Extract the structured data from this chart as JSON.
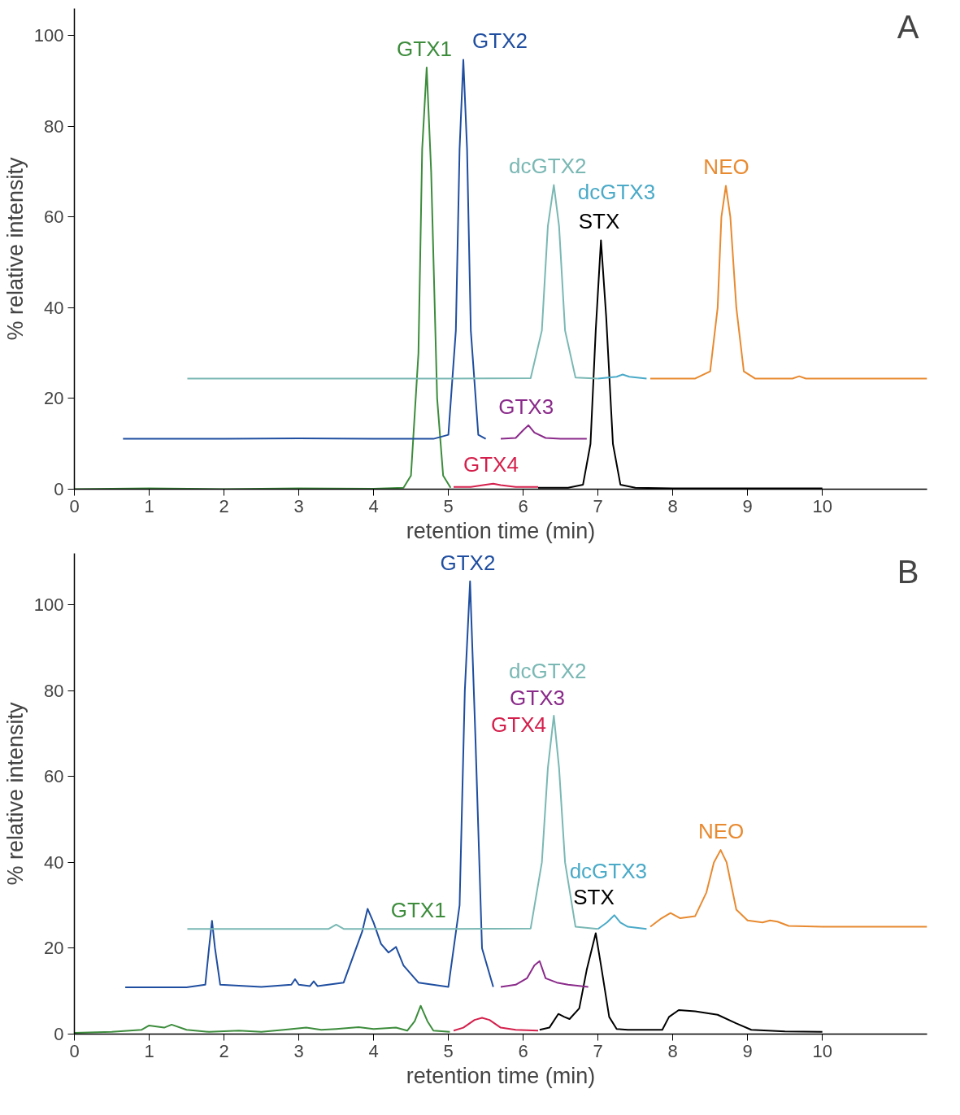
{
  "chart_data": [
    {
      "type": "line",
      "xlabel": "retention time (min)",
      "ylabel": "% relative intensity",
      "annotations": [
        "A"
      ],
      "xlim": [
        0,
        11.4
      ],
      "ylim": [
        0,
        106
      ],
      "xticks": [
        0,
        1,
        2,
        3,
        4,
        5,
        6,
        7,
        8,
        9,
        10
      ],
      "yticks": [
        0,
        20,
        40,
        60,
        80,
        100
      ],
      "grid": false,
      "legend": false,
      "marker": "none",
      "line_style": "solid",
      "series": [
        {
          "name": "GTX1",
          "color": "#3c8c3c",
          "x": [
            0,
            1,
            2,
            3,
            4,
            4.4,
            4.5,
            4.6,
            4.65,
            4.71,
            4.77,
            4.85,
            4.93,
            5.03
          ],
          "values": [
            0,
            0.2,
            0,
            0.2,
            0.1,
            0.3,
            3,
            30,
            75,
            93,
            70,
            20,
            3,
            0.3
          ]
        },
        {
          "name": "GTX4",
          "color": "#d4204c",
          "x": [
            5.07,
            5.3,
            5.5,
            5.6,
            5.7,
            5.9,
            6.2
          ],
          "values": [
            0.5,
            0.5,
            1,
            1.2,
            0.9,
            0.5,
            0.5
          ]
        },
        {
          "name": "STX",
          "color": "#000000",
          "x": [
            6.2,
            6.6,
            6.8,
            6.9,
            6.97,
            7.04,
            7.11,
            7.2,
            7.3,
            7.5,
            8,
            9,
            10
          ],
          "values": [
            0.3,
            0.3,
            1,
            10,
            35,
            54.9,
            38,
            10,
            1,
            0.3,
            0.2,
            0.2,
            0.2
          ]
        },
        {
          "name": "GTX2",
          "color": "#1f4ea0",
          "x": [
            0.65,
            2,
            3,
            4,
            4.8,
            5.0,
            5.1,
            5.15,
            5.2,
            5.25,
            5.3,
            5.4,
            5.5
          ],
          "values": [
            11.1,
            11.1,
            11.2,
            11.1,
            11.1,
            12,
            35,
            75,
            94.7,
            75,
            35,
            12,
            11.1
          ]
        },
        {
          "name": "GTX3",
          "color": "#8a2a8a",
          "x": [
            5.7,
            5.9,
            6.0,
            6.07,
            6.15,
            6.3,
            6.5,
            6.85
          ],
          "values": [
            11.1,
            11.3,
            13,
            14.1,
            12.5,
            11.3,
            11.1,
            11.1
          ]
        },
        {
          "name": "dcGTX2",
          "color": "#7ab8b4",
          "x": [
            1.51,
            3,
            5,
            6.1,
            6.25,
            6.33,
            6.41,
            6.48,
            6.56,
            6.7,
            7.0
          ],
          "values": [
            24.4,
            24.4,
            24.4,
            24.5,
            35,
            58,
            67.1,
            58,
            35,
            24.6,
            24.4
          ]
        },
        {
          "name": "dcGTX3",
          "color": "#4aaac8",
          "x": [
            7.0,
            7.25,
            7.33,
            7.42,
            7.65
          ],
          "values": [
            24.4,
            24.8,
            25.3,
            24.8,
            24.4
          ]
        },
        {
          "name": "NEO",
          "color": "#e88a30",
          "x": [
            7.7,
            8.3,
            8.5,
            8.6,
            8.65,
            8.71,
            8.77,
            8.85,
            8.95,
            9.1,
            9.6,
            9.69,
            9.78,
            10,
            11.4
          ],
          "values": [
            24.4,
            24.4,
            26,
            40,
            60,
            66.9,
            60,
            40,
            26,
            24.4,
            24.4,
            24.9,
            24.4,
            24.4,
            24.4
          ]
        }
      ]
    },
    {
      "type": "line",
      "xlabel": "retention time (min)",
      "ylabel": "% relative intensity",
      "annotations": [
        "B"
      ],
      "xlim": [
        0,
        11.4
      ],
      "ylim": [
        0,
        112
      ],
      "xticks": [
        0,
        1,
        2,
        3,
        4,
        5,
        6,
        7,
        8,
        9,
        10
      ],
      "yticks": [
        0,
        20,
        40,
        60,
        80,
        100
      ],
      "grid": false,
      "legend": false,
      "marker": "none",
      "line_style": "solid",
      "series": [
        {
          "name": "GTX1",
          "color": "#3c8c3c",
          "x": [
            0,
            0.5,
            0.9,
            1.0,
            1.2,
            1.3,
            1.5,
            1.8,
            2.2,
            2.5,
            2.8,
            3.1,
            3.3,
            3.5,
            3.8,
            4.0,
            4.3,
            4.45,
            4.55,
            4.63,
            4.72,
            4.8,
            5.02
          ],
          "values": [
            0.3,
            0.5,
            1,
            2,
            1.5,
            2.2,
            1,
            0.5,
            0.8,
            0.5,
            1,
            1.5,
            1,
            1.2,
            1.6,
            1.2,
            1.5,
            0.8,
            3,
            6.6,
            3,
            0.8,
            0.5
          ]
        },
        {
          "name": "GTX4",
          "color": "#d4204c",
          "x": [
            5.07,
            5.2,
            5.35,
            5.45,
            5.55,
            5.7,
            5.9,
            6.2
          ],
          "values": [
            0.8,
            1.5,
            3.3,
            3.8,
            3.3,
            1.5,
            1,
            0.8
          ]
        },
        {
          "name": "STX",
          "color": "#000000",
          "x": [
            6.22,
            6.35,
            6.47,
            6.55,
            6.62,
            6.75,
            6.85,
            6.97,
            7.05,
            7.15,
            7.25,
            7.4,
            7.86,
            7.95,
            8.08,
            8.3,
            8.6,
            8.85,
            9.05,
            9.5,
            10
          ],
          "values": [
            1,
            1.5,
            4.7,
            4,
            3.5,
            6,
            15,
            23.5,
            15,
            4,
            1.2,
            1,
            1,
            4,
            5.6,
            5.3,
            4.5,
            2.5,
            1,
            0.6,
            0.5
          ]
        },
        {
          "name": "GTX2",
          "color": "#1f4ea0",
          "x": [
            0.68,
            1.5,
            1.75,
            1.8,
            1.84,
            1.88,
            1.95,
            2.5,
            2.9,
            2.95,
            3.0,
            3.15,
            3.2,
            3.25,
            3.6,
            3.85,
            3.92,
            4.0,
            4.1,
            4.2,
            4.3,
            4.4,
            4.6,
            5.0,
            5.15,
            5.22,
            5.29,
            5.36,
            5.45,
            5.6
          ],
          "values": [
            10.9,
            10.9,
            11.5,
            20,
            26.4,
            20,
            11.5,
            11,
            11.5,
            12.8,
            11.5,
            11.2,
            12.3,
            11.2,
            12,
            24,
            29.2,
            26,
            21,
            19,
            20.3,
            16,
            12,
            11,
            30,
            80,
            105.5,
            70,
            20,
            11
          ]
        },
        {
          "name": "GTX3",
          "color": "#8a2a8a",
          "x": [
            5.7,
            5.9,
            6.05,
            6.15,
            6.22,
            6.3,
            6.45,
            6.6,
            6.87
          ],
          "values": [
            11,
            11.5,
            13,
            16,
            17,
            13,
            12,
            11.5,
            11
          ]
        },
        {
          "name": "dcGTX2",
          "color": "#7ab8b4",
          "x": [
            1.51,
            3.4,
            3.5,
            3.6,
            5,
            6.1,
            6.25,
            6.33,
            6.41,
            6.48,
            6.56,
            6.7,
            7.0
          ],
          "values": [
            24.5,
            24.5,
            25.5,
            24.5,
            24.5,
            24.6,
            40,
            62,
            74.2,
            62,
            40,
            25,
            24.5
          ]
        },
        {
          "name": "dcGTX3",
          "color": "#4aaac8",
          "x": [
            7.0,
            7.12,
            7.22,
            7.3,
            7.4,
            7.65
          ],
          "values": [
            24.5,
            26,
            27.7,
            26,
            25,
            24.5
          ]
        },
        {
          "name": "NEO",
          "color": "#e88a30",
          "x": [
            7.7,
            7.85,
            7.97,
            8.1,
            8.3,
            8.45,
            8.55,
            8.64,
            8.72,
            8.85,
            9.0,
            9.2,
            9.3,
            9.4,
            9.55,
            10,
            11.4
          ],
          "values": [
            25,
            27,
            28.2,
            27,
            27.5,
            33,
            40,
            42.9,
            40,
            29,
            26.5,
            26,
            26.5,
            26.2,
            25.2,
            25,
            25
          ]
        }
      ]
    }
  ]
}
